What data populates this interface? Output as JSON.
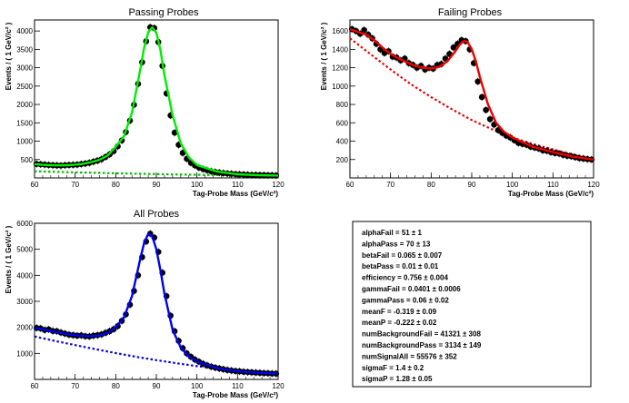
{
  "chart_data": [
    {
      "type": "scatter",
      "title": "Passing Probes",
      "xlabel": "Tag-Probe Mass (GeV/c²)",
      "ylabel": "Events / ( 1 GeV/c² )",
      "xlim": [
        60,
        120
      ],
      "ylim": [
        0,
        4300
      ],
      "xticks": [
        60,
        70,
        80,
        90,
        100,
        110,
        120
      ],
      "yticks": [
        500,
        1000,
        1500,
        2000,
        2500,
        3000,
        3500,
        4000
      ],
      "fit_color": "#00ee00",
      "background_color": "#00bb00",
      "data_points": {
        "x": [
          60.5,
          61.5,
          62.5,
          63.5,
          64.5,
          65.5,
          66.5,
          67.5,
          68.5,
          69.5,
          70.5,
          71.5,
          72.5,
          73.5,
          74.5,
          75.5,
          76.5,
          77.5,
          78.5,
          79.5,
          80.5,
          81.5,
          82.5,
          83.5,
          84.5,
          85.5,
          86.5,
          87.5,
          88.5,
          89.5,
          90.5,
          91.5,
          92.5,
          93.5,
          94.5,
          95.5,
          96.5,
          97.5,
          98.5,
          99.5,
          100.5,
          101.5,
          102.5,
          103.5,
          104.5,
          105.5,
          106.5,
          107.5,
          108.5,
          109.5,
          110.5,
          111.5,
          112.5,
          113.5,
          114.5,
          115.5,
          116.5,
          117.5,
          118.5,
          119.5
        ],
        "y": [
          380,
          370,
          360,
          350,
          345,
          340,
          335,
          345,
          350,
          355,
          360,
          375,
          390,
          410,
          440,
          470,
          510,
          570,
          640,
          730,
          860,
          1020,
          1250,
          1560,
          1990,
          2560,
          3150,
          3720,
          4100,
          4080,
          3700,
          3050,
          2300,
          1700,
          1230,
          900,
          680,
          520,
          410,
          340,
          280,
          240,
          210,
          180,
          160,
          145,
          130,
          120,
          110,
          100,
          95,
          90,
          85,
          80,
          80,
          75,
          75,
          70,
          70,
          65
        ]
      },
      "fit_curve": {
        "x": [
          60,
          62,
          64,
          66,
          68,
          70,
          72,
          74,
          76,
          78,
          80,
          82,
          84,
          86,
          87,
          88,
          89,
          90,
          91,
          92,
          94,
          96,
          98,
          100,
          105,
          110,
          115,
          120
        ],
        "y": [
          375,
          355,
          345,
          340,
          345,
          360,
          385,
          430,
          495,
          610,
          850,
          1130,
          1780,
          2920,
          3550,
          3970,
          4100,
          3950,
          3480,
          2800,
          1700,
          950,
          560,
          350,
          170,
          100,
          75,
          65
        ]
      },
      "background_curve": {
        "x": [
          60,
          70,
          80,
          90,
          100,
          110,
          120
        ],
        "y": [
          180,
          150,
          125,
          105,
          85,
          70,
          60
        ]
      }
    },
    {
      "type": "scatter",
      "title": "Failing Probes",
      "xlabel": "Tag-Probe Mass (GeV/c²)",
      "ylabel": "Events / ( 1 GeV/c² )",
      "xlim": [
        60,
        120
      ],
      "ylim": [
        0,
        1720
      ],
      "xticks": [
        60,
        70,
        80,
        90,
        100,
        110,
        120
      ],
      "yticks": [
        200,
        400,
        600,
        800,
        1000,
        1200,
        1400,
        1600
      ],
      "fit_color": "#ee0000",
      "background_color": "#ee0000",
      "data_points": {
        "x": [
          60.5,
          61.5,
          62.5,
          63.5,
          64.5,
          65.5,
          66.5,
          67.5,
          68.5,
          69.5,
          70.5,
          71.5,
          72.5,
          73.5,
          74.5,
          75.5,
          76.5,
          77.5,
          78.5,
          79.5,
          80.5,
          81.5,
          82.5,
          83.5,
          84.5,
          85.5,
          86.5,
          87.5,
          88.5,
          89.5,
          90.5,
          91.5,
          92.5,
          93.5,
          94.5,
          95.5,
          96.5,
          97.5,
          98.5,
          99.5,
          100.5,
          101.5,
          102.5,
          103.5,
          104.5,
          105.5,
          106.5,
          107.5,
          108.5,
          109.5,
          110.5,
          111.5,
          112.5,
          113.5,
          114.5,
          115.5,
          116.5,
          117.5,
          118.5,
          119.5
        ],
        "y": [
          1620,
          1600,
          1570,
          1610,
          1560,
          1520,
          1460,
          1400,
          1360,
          1380,
          1320,
          1310,
          1280,
          1300,
          1250,
          1230,
          1200,
          1220,
          1180,
          1200,
          1190,
          1230,
          1240,
          1300,
          1350,
          1420,
          1460,
          1500,
          1490,
          1400,
          1250,
          1050,
          880,
          740,
          640,
          580,
          520,
          490,
          460,
          440,
          410,
          380,
          370,
          360,
          340,
          330,
          320,
          300,
          295,
          280,
          270,
          265,
          250,
          240,
          235,
          225,
          215,
          210,
          205,
          200
        ]
      },
      "fit_curve": {
        "x": [
          60,
          62,
          64,
          66,
          68,
          70,
          72,
          74,
          76,
          78,
          80,
          82,
          84,
          86,
          87,
          88,
          89,
          90,
          91,
          92,
          94,
          96,
          98,
          100,
          105,
          110,
          115,
          120
        ],
        "y": [
          1620,
          1590,
          1560,
          1500,
          1420,
          1350,
          1300,
          1260,
          1220,
          1200,
          1190,
          1210,
          1270,
          1380,
          1450,
          1490,
          1480,
          1400,
          1270,
          1100,
          800,
          600,
          500,
          440,
          340,
          280,
          230,
          200
        ]
      },
      "background_curve": {
        "x": [
          60,
          65,
          70,
          75,
          80,
          85,
          90,
          95,
          100,
          105,
          110,
          115,
          120
        ],
        "y": [
          1520,
          1350,
          1180,
          1020,
          880,
          750,
          630,
          530,
          440,
          370,
          310,
          255,
          210
        ]
      }
    },
    {
      "type": "scatter",
      "title": "All Probes",
      "xlabel": "Tag-Probe Mass (GeV/c²)",
      "ylabel": "Events / ( 1 GeV/c² )",
      "xlim": [
        60,
        120
      ],
      "ylim": [
        0,
        6000
      ],
      "xticks": [
        60,
        70,
        80,
        90,
        100,
        110,
        120
      ],
      "yticks": [
        1000,
        2000,
        3000,
        4000,
        5000,
        6000
      ],
      "fit_color": "#0000ee",
      "background_color": "#0000dd",
      "data_points": {
        "x": [
          60.5,
          61.5,
          62.5,
          63.5,
          64.5,
          65.5,
          66.5,
          67.5,
          68.5,
          69.5,
          70.5,
          71.5,
          72.5,
          73.5,
          74.5,
          75.5,
          76.5,
          77.5,
          78.5,
          79.5,
          80.5,
          81.5,
          82.5,
          83.5,
          84.5,
          85.5,
          86.5,
          87.5,
          88.5,
          89.5,
          90.5,
          91.5,
          92.5,
          93.5,
          94.5,
          95.5,
          96.5,
          97.5,
          98.5,
          99.5,
          100.5,
          101.5,
          102.5,
          103.5,
          104.5,
          105.5,
          106.5,
          107.5,
          108.5,
          109.5,
          110.5,
          111.5,
          112.5,
          113.5,
          114.5,
          115.5,
          116.5,
          117.5,
          118.5,
          119.5
        ],
        "y": [
          1980,
          1960,
          1900,
          1920,
          1860,
          1850,
          1800,
          1760,
          1720,
          1700,
          1680,
          1690,
          1660,
          1650,
          1680,
          1700,
          1730,
          1790,
          1850,
          1930,
          2050,
          2250,
          2500,
          2870,
          3400,
          4000,
          4700,
          5300,
          5600,
          5450,
          4900,
          4100,
          3200,
          2450,
          1850,
          1480,
          1200,
          1000,
          870,
          760,
          680,
          600,
          540,
          490,
          450,
          420,
          390,
          360,
          340,
          320,
          310,
          290,
          280,
          270,
          260,
          250,
          240,
          235,
          225,
          220
        ]
      },
      "fit_curve": {
        "x": [
          60,
          62,
          64,
          66,
          68,
          70,
          72,
          74,
          76,
          78,
          80,
          82,
          84,
          86,
          87,
          88,
          89,
          90,
          91,
          92,
          94,
          96,
          98,
          100,
          105,
          110,
          115,
          120
        ],
        "y": [
          1990,
          1920,
          1860,
          1800,
          1740,
          1700,
          1670,
          1660,
          1690,
          1780,
          2000,
          2380,
          3200,
          4600,
          5250,
          5600,
          5500,
          5000,
          4200,
          3300,
          1900,
          1230,
          880,
          690,
          430,
          310,
          255,
          220
        ]
      },
      "background_curve": {
        "x": [
          60,
          65,
          70,
          75,
          80,
          85,
          90,
          95,
          100,
          105,
          110,
          115,
          120
        ],
        "y": [
          1650,
          1480,
          1320,
          1160,
          1010,
          870,
          740,
          620,
          510,
          420,
          340,
          270,
          210
        ]
      }
    }
  ],
  "parameters": [
    {
      "name": "alphaFail",
      "value": "51 ± 1"
    },
    {
      "name": "alphaPass",
      "value": "70 ± 13"
    },
    {
      "name": "betaFail",
      "value": "0.065 ± 0.007"
    },
    {
      "name": "betaPass",
      "value": "0.01 ± 0.01"
    },
    {
      "name": "efficiency",
      "value": "0.756 ± 0.004"
    },
    {
      "name": "gammaFail",
      "value": "0.0401 ± 0.0006"
    },
    {
      "name": "gammaPass",
      "value": "0.06 ± 0.02"
    },
    {
      "name": "meanF",
      "value": "-0.319 ± 0.09"
    },
    {
      "name": "meanP",
      "value": "-0.222 ± 0.02"
    },
    {
      "name": "numBackgroundFail",
      "value": "41321 ± 308"
    },
    {
      "name": "numBackgroundPass",
      "value": "3134 ± 149"
    },
    {
      "name": "numSignalAll",
      "value": "55576 ± 352"
    },
    {
      "name": "sigmaF",
      "value": "1.4 ± 0.2"
    },
    {
      "name": "sigmaP",
      "value": "1.28 ± 0.05"
    }
  ]
}
